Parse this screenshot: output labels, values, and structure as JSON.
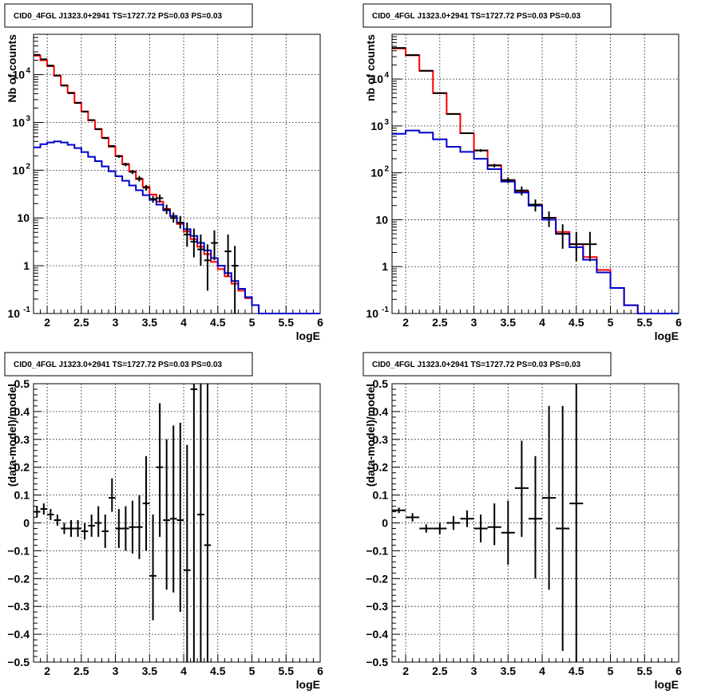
{
  "chart_data": [
    {
      "title": "CID0_4FGL J1323.0+2941 TS=1727.72 PS=0.03 PS=0.03",
      "type": "line",
      "xlabel": "logE",
      "ylabel": "Nb of counts",
      "xlim": [
        1.8,
        6
      ],
      "ylim": [
        0.1,
        70000
      ],
      "ylog": true,
      "grid": true,
      "xticks": [
        "2",
        "2.5",
        "3",
        "3.5",
        "4",
        "4.5",
        "5",
        "5.5",
        "6"
      ],
      "yticks": [
        {
          "v": 0.1,
          "label": "10",
          "exp": "-1"
        },
        {
          "v": 1,
          "label": "1"
        },
        {
          "v": 10,
          "label": "10"
        },
        {
          "v": 100,
          "label": "10",
          "exp": "2"
        },
        {
          "v": 1000,
          "label": "10",
          "exp": "3"
        },
        {
          "v": 10000,
          "label": "10",
          "exp": "4"
        }
      ],
      "binwidth": 0.1,
      "series": [
        {
          "color": "#ff0000",
          "x": [
            1.8,
            1.9,
            2.0,
            2.1,
            2.2,
            2.3,
            2.4,
            2.5,
            2.6,
            2.7,
            2.8,
            2.9,
            3.0,
            3.1,
            3.2,
            3.3,
            3.4,
            3.5,
            3.6,
            3.7,
            3.8,
            3.9,
            4.0,
            4.1,
            4.2,
            4.3,
            4.4,
            4.5,
            4.6,
            4.7,
            4.8,
            4.9,
            5.0,
            5.1,
            5.2,
            5.3,
            5.4,
            5.5,
            5.6,
            5.7,
            5.8,
            5.9,
            6.0
          ],
          "values": [
            25000,
            20000,
            15000,
            9500,
            6000,
            4200,
            2600,
            1700,
            1100,
            730,
            480,
            310,
            200,
            135,
            95,
            65,
            45,
            31,
            22,
            15.5,
            11,
            7.5,
            5.2,
            3.6,
            2.5,
            1.75,
            1.2,
            0.85,
            0.6,
            0.42,
            0.3,
            0.21,
            0.15,
            0.1,
            0.1,
            0.1,
            0.1,
            0.1,
            0.1,
            0.1,
            0.1,
            0.1,
            0.1
          ]
        },
        {
          "color": "#0000cc",
          "x": [
            1.8,
            1.9,
            2.0,
            2.1,
            2.2,
            2.3,
            2.4,
            2.5,
            2.6,
            2.7,
            2.8,
            2.9,
            3.0,
            3.1,
            3.2,
            3.3,
            3.4,
            3.5,
            3.6,
            3.7,
            3.8,
            3.9,
            4.0,
            4.1,
            4.2,
            4.3,
            4.4,
            4.5,
            4.6,
            4.7,
            4.8,
            4.9,
            5.0,
            5.1,
            5.2,
            5.3,
            5.4,
            5.5,
            5.6,
            5.7,
            5.8,
            5.9,
            6.0
          ],
          "values": [
            300,
            350,
            380,
            400,
            380,
            340,
            290,
            240,
            190,
            155,
            120,
            95,
            75,
            60,
            48,
            38,
            30,
            24,
            19,
            14.5,
            11,
            8,
            5.8,
            4.2,
            3,
            2.1,
            1.45,
            1,
            0.7,
            0.48,
            0.33,
            0.22,
            0.15,
            0.1,
            0.1,
            0.1,
            0.1,
            0.1,
            0.1,
            0.1,
            0.1,
            0.1,
            0.1
          ]
        }
      ],
      "points": {
        "x": [
          1.85,
          1.95,
          2.05,
          2.15,
          2.25,
          2.35,
          2.45,
          2.55,
          2.65,
          2.75,
          2.85,
          2.95,
          3.05,
          3.15,
          3.25,
          3.35,
          3.45,
          3.55,
          3.65,
          3.75,
          3.85,
          3.95,
          4.05,
          4.15,
          4.25,
          4.35,
          4.45,
          4.65,
          4.75
        ],
        "y": [
          26000,
          21000,
          15500,
          9600,
          5900,
          4100,
          2550,
          1680,
          1120,
          720,
          470,
          320,
          195,
          132,
          92,
          67,
          43,
          25,
          26,
          15,
          10,
          8,
          4.5,
          3.2,
          2.2,
          1.3,
          3,
          2,
          1
        ],
        "lo": [
          25800,
          20800,
          15300,
          9400,
          5800,
          4000,
          2500,
          1640,
          1090,
          690,
          450,
          305,
          182,
          121,
          83,
          58,
          37,
          21,
          21,
          12,
          8,
          6,
          2.5,
          1.5,
          1,
          0.3,
          1.3,
          0.6,
          0.1
        ],
        "hi": [
          26200,
          21200,
          15700,
          9800,
          6000,
          4200,
          2600,
          1720,
          1150,
          750,
          490,
          335,
          208,
          143,
          101,
          76,
          49,
          29,
          31,
          19,
          13,
          11,
          8,
          6,
          4.5,
          2.8,
          5.5,
          4.5,
          2.6
        ]
      }
    },
    {
      "title": "CID0_4FGL J1323.0+2941 TS=1727.72 PS=0.03 PS=0.03",
      "type": "line",
      "xlabel": "logE",
      "ylabel": "nb of counts",
      "xlim": [
        1.8,
        6
      ],
      "ylim": [
        0.1,
        90000
      ],
      "ylog": true,
      "grid": true,
      "xticks": [
        "2",
        "2.5",
        "3",
        "3.5",
        "4",
        "4.5",
        "5",
        "5.5",
        "6"
      ],
      "yticks": [
        {
          "v": 0.1,
          "label": "10",
          "exp": "-1"
        },
        {
          "v": 1,
          "label": "1"
        },
        {
          "v": 10,
          "label": "10"
        },
        {
          "v": 100,
          "label": "10",
          "exp": "2"
        },
        {
          "v": 1000,
          "label": "10",
          "exp": "3"
        },
        {
          "v": 10000,
          "label": "10",
          "exp": "4"
        }
      ],
      "binwidth": 0.2,
      "series": [
        {
          "color": "#ff0000",
          "x": [
            1.8,
            2.0,
            2.2,
            2.4,
            2.6,
            2.8,
            3.0,
            3.2,
            3.4,
            3.6,
            3.8,
            4.0,
            4.2,
            4.4,
            4.6,
            4.8,
            5.0,
            5.2,
            5.4,
            5.6,
            5.8,
            6.0
          ],
          "values": [
            45000,
            32000,
            15000,
            5000,
            1800,
            700,
            300,
            145,
            70,
            40,
            21,
            11,
            5.5,
            3,
            1.6,
            0.85,
            0.35,
            0.15,
            0.1,
            0.1,
            0.1,
            0.1
          ]
        },
        {
          "color": "#0000cc",
          "x": [
            1.8,
            2.0,
            2.2,
            2.4,
            2.6,
            2.8,
            3.0,
            3.2,
            3.4,
            3.6,
            3.8,
            4.0,
            4.2,
            4.4,
            4.6,
            4.8,
            5.0,
            5.2,
            5.4,
            5.6,
            5.8,
            6.0
          ],
          "values": [
            680,
            800,
            720,
            520,
            360,
            280,
            200,
            120,
            65,
            38,
            20,
            10,
            5,
            2.6,
            1.4,
            0.75,
            0.35,
            0.15,
            0.1,
            0.1,
            0.1,
            0.1
          ]
        }
      ],
      "points": {
        "x": [
          1.9,
          2.1,
          2.3,
          2.5,
          2.7,
          2.9,
          3.1,
          3.3,
          3.5,
          3.7,
          3.9,
          4.1,
          4.3,
          4.5,
          4.7
        ],
        "y": [
          46000,
          32500,
          15000,
          5000,
          1800,
          700,
          300,
          143,
          70,
          42,
          21,
          11,
          5,
          3,
          3
        ],
        "lo": [
          45700,
          32200,
          14800,
          4900,
          1740,
          670,
          280,
          130,
          60,
          33,
          15,
          7,
          2.4,
          1.3,
          1.3
        ],
        "hi": [
          46300,
          32800,
          15200,
          5100,
          1860,
          730,
          320,
          156,
          80,
          51,
          27,
          15,
          8,
          5.5,
          5.5
        ]
      }
    },
    {
      "title": "CID0_4FGL J1323.0+2941 TS=1727.72 PS=0.03 PS=0.03",
      "type": "scatter",
      "xlabel": "logE",
      "ylabel": "(data-model)/model",
      "xlim": [
        1.8,
        6
      ],
      "ylim": [
        -0.5,
        0.5
      ],
      "ylog": false,
      "grid": true,
      "xticks": [
        "2",
        "2.5",
        "3",
        "3.5",
        "4",
        "4.5",
        "5",
        "5.5",
        "6"
      ],
      "yticks": [
        {
          "v": -0.5,
          "label": "−0.5"
        },
        {
          "v": -0.4,
          "label": "−0.4"
        },
        {
          "v": -0.3,
          "label": "−0.3"
        },
        {
          "v": -0.2,
          "label": "−0.2"
        },
        {
          "v": -0.1,
          "label": "−0.1"
        },
        {
          "v": 0,
          "label": "0"
        },
        {
          "v": 0.1,
          "label": "0.1"
        },
        {
          "v": 0.2,
          "label": "0.2"
        },
        {
          "v": 0.3,
          "label": "0.3"
        },
        {
          "v": 0.4,
          "label": "0.4"
        },
        {
          "v": 0.5,
          "label": "0.5"
        }
      ],
      "binwidth": 0.1,
      "points": {
        "x": [
          1.85,
          1.95,
          2.05,
          2.15,
          2.25,
          2.35,
          2.45,
          2.55,
          2.65,
          2.75,
          2.85,
          2.95,
          3.05,
          3.15,
          3.25,
          3.35,
          3.45,
          3.55,
          3.65,
          3.75,
          3.85,
          3.95,
          4.05,
          4.15,
          4.25,
          4.35
        ],
        "y": [
          0.04,
          0.05,
          0.03,
          0.01,
          -0.02,
          -0.02,
          -0.02,
          -0.03,
          -0.01,
          0.0,
          -0.03,
          0.09,
          -0.02,
          -0.02,
          -0.015,
          -0.015,
          0.07,
          -0.19,
          0.2,
          0.01,
          0.015,
          0.01,
          -0.17,
          0.48,
          0.03,
          -0.08
        ],
        "lo": [
          0.02,
          0.03,
          0.01,
          -0.01,
          -0.04,
          -0.05,
          -0.05,
          -0.06,
          -0.05,
          -0.05,
          -0.09,
          0.04,
          -0.09,
          -0.1,
          -0.11,
          -0.13,
          -0.1,
          -0.35,
          -0.05,
          -0.24,
          -0.25,
          -0.32,
          -0.5,
          -0.5,
          -0.5,
          -0.5
        ],
        "hi": [
          0.06,
          0.07,
          0.05,
          0.03,
          0.0,
          0.01,
          0.01,
          0.0,
          0.03,
          0.06,
          0.03,
          0.16,
          0.05,
          0.06,
          0.08,
          0.1,
          0.24,
          0.03,
          0.43,
          0.3,
          0.35,
          0.36,
          0.28,
          0.5,
          0.5,
          0.5
        ]
      }
    },
    {
      "title": "CID0_4FGL J1323.0+2941 TS=1727.72 PS=0.03 PS=0.03",
      "type": "scatter",
      "xlabel": "logE",
      "ylabel": "(data-model)/model",
      "xlim": [
        1.8,
        6
      ],
      "ylim": [
        -0.5,
        0.5
      ],
      "ylog": false,
      "grid": true,
      "xticks": [
        "2",
        "2.5",
        "3",
        "3.5",
        "4",
        "4.5",
        "5",
        "5.5",
        "6"
      ],
      "yticks": [
        {
          "v": -0.5,
          "label": "−0.5"
        },
        {
          "v": -0.4,
          "label": "−0.4"
        },
        {
          "v": -0.3,
          "label": "−0.3"
        },
        {
          "v": -0.2,
          "label": "−0.2"
        },
        {
          "v": -0.1,
          "label": "−0.1"
        },
        {
          "v": 0,
          "label": "0"
        },
        {
          "v": 0.1,
          "label": "0.1"
        },
        {
          "v": 0.2,
          "label": "0.2"
        },
        {
          "v": 0.3,
          "label": "0.3"
        },
        {
          "v": 0.4,
          "label": "0.4"
        },
        {
          "v": 0.5,
          "label": "0.5"
        }
      ],
      "binwidth": 0.2,
      "points": {
        "x": [
          1.9,
          2.1,
          2.3,
          2.5,
          2.7,
          2.9,
          3.1,
          3.3,
          3.5,
          3.7,
          3.9,
          4.1,
          4.3,
          4.5
        ],
        "y": [
          0.045,
          0.02,
          -0.02,
          -0.02,
          0.0,
          0.015,
          -0.02,
          -0.015,
          -0.035,
          0.125,
          0.015,
          0.09,
          -0.02,
          0.07
        ],
        "lo": [
          0.035,
          0.005,
          -0.035,
          -0.04,
          -0.025,
          -0.015,
          -0.07,
          -0.08,
          -0.15,
          -0.05,
          -0.2,
          -0.24,
          -0.46,
          -0.5
        ],
        "hi": [
          0.055,
          0.035,
          -0.005,
          0.0,
          0.025,
          0.045,
          0.03,
          0.07,
          0.08,
          0.295,
          0.24,
          0.42,
          0.42,
          0.5
        ]
      }
    }
  ]
}
